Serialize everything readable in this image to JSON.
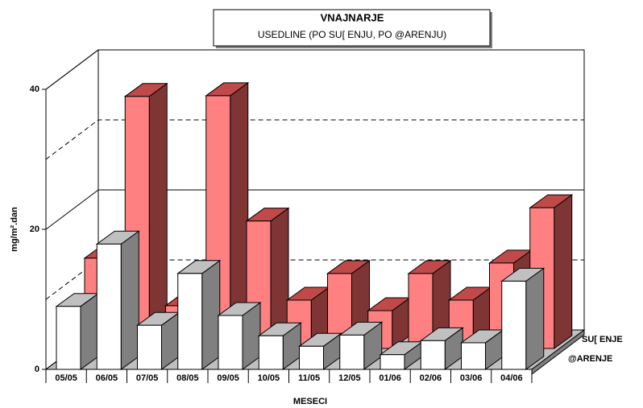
{
  "chart_data": {
    "type": "bar3d",
    "title": "VNAJNARJE",
    "subtitle": "USEDLINE (PO SU[ ENJU, PO @ARENJU)",
    "x_label": "MESECI",
    "y_label": "mg/m².dan",
    "categories": [
      "05/05",
      "06/05",
      "07/05",
      "08/05",
      "09/05",
      "10/05",
      "11/05",
      "12/05",
      "01/06",
      "02/06",
      "03/06",
      "04/06"
    ],
    "series": [
      {
        "name": "SU[ ENJE",
        "color": "#ff8080",
        "values": [
          12.9,
          36.0,
          6.1,
          36.1,
          18.2,
          6.9,
          10.7,
          5.4,
          10.7,
          6.9,
          12.2,
          20.1
        ]
      },
      {
        "name": "@ARENJE",
        "color": "#ffffff",
        "values": [
          9.0,
          17.9,
          6.3,
          13.7,
          7.7,
          4.8,
          3.3,
          4.9,
          2.1,
          4.1,
          3.8,
          12.6
        ]
      }
    ],
    "ylim": [
      0,
      40
    ],
    "yticks": [
      0,
      20,
      40
    ],
    "minor_yticks": [
      10,
      30
    ],
    "grid": true
  }
}
